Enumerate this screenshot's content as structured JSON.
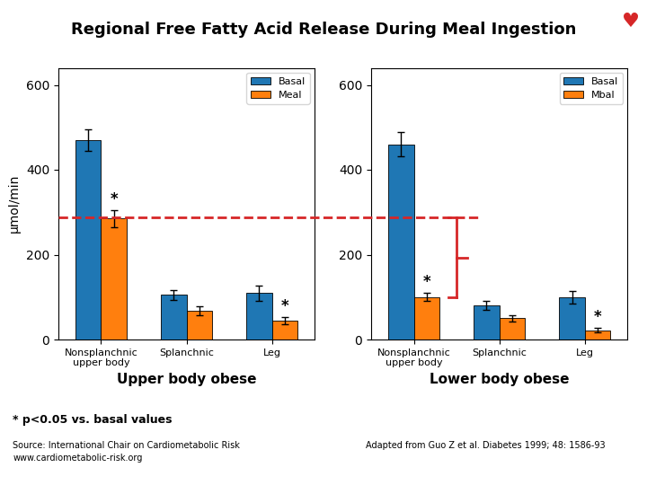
{
  "title": "Regional Free Fatty Acid Release During Meal Ingestion",
  "annotations": [
    "♥",
    "* p<0.05 vs. basal values",
    "Source: International Chair on Cardiometabolic Risk\nwww.cardiometabolic-risk.org",
    "Adapted from Guo Z et al. Diabetes 1999; 48: 1586-93"
  ],
  "chart_data": [
    {
      "type": "bar",
      "title": "Upper body obese",
      "ylabel": "μmol/min",
      "categories": [
        "Nonsplanchnic\nupper body",
        "Splanchnic",
        "Leg"
      ],
      "ylim": [
        0,
        640
      ],
      "yticks": [
        0,
        200,
        400,
        600
      ],
      "legend": "upper right",
      "series": [
        {
          "name": "Basal",
          "values": [
            470,
            105,
            110
          ],
          "errors": [
            25,
            12,
            18
          ]
        },
        {
          "name": "Meal",
          "values": [
            285,
            68,
            45
          ],
          "errors": [
            20,
            10,
            8
          ]
        }
      ],
      "annotations": [
        {
          "text": "*",
          "series": "Meal",
          "category": "Nonsplanchnic\nupper body"
        },
        {
          "text": "*",
          "series": "Meal",
          "category": "Leg"
        }
      ],
      "reference_line": 287
    },
    {
      "type": "bar",
      "title": "Lower body obese",
      "categories": [
        "Nonsplanchnic\nupper body",
        "Splanchnic",
        "Leg"
      ],
      "ylim": [
        0,
        640
      ],
      "yticks": [
        0,
        200,
        400,
        600
      ],
      "legend": "upper right",
      "series": [
        {
          "name": "Basal",
          "values": [
            460,
            80,
            100
          ],
          "errors": [
            28,
            10,
            15
          ]
        },
        {
          "name": "Mbal",
          "values": [
            100,
            50,
            22
          ],
          "errors": [
            10,
            8,
            5
          ]
        }
      ],
      "annotations": [
        {
          "text": "*",
          "series": "Mbal",
          "category": "Nonsplanchnic\nupper body"
        },
        {
          "text": "*",
          "series": "Mbal",
          "category": "Leg"
        }
      ],
      "bracket": [
        287,
        100
      ]
    }
  ]
}
